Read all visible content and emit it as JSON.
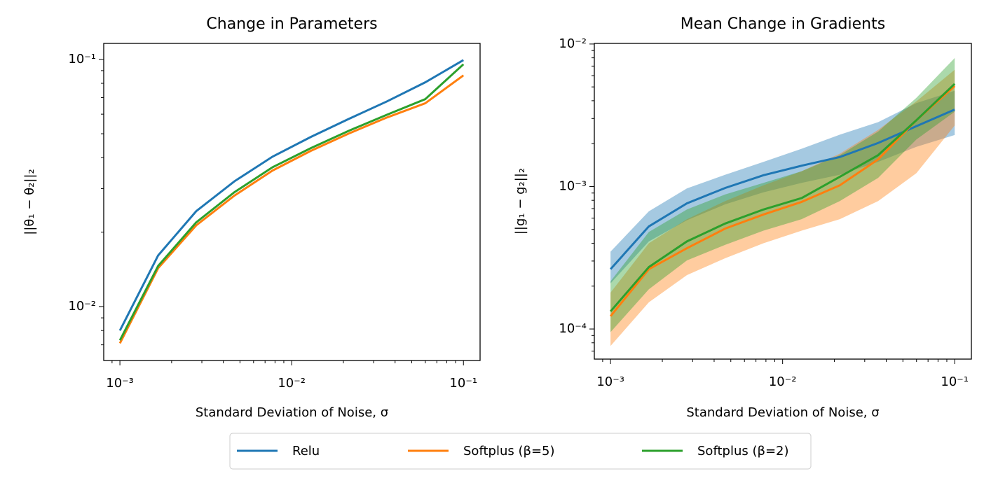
{
  "chart_data": [
    {
      "type": "line",
      "title": "Change in Parameters",
      "xlabel": "Standard Deviation of Noise, σ",
      "ylabel": "||θ₁ − θ₂||₂",
      "xscale": "log",
      "yscale": "log",
      "x": [
        0.001,
        0.00167,
        0.00278,
        0.00464,
        0.00774,
        0.0129,
        0.0215,
        0.0359,
        0.0599,
        0.1
      ],
      "xlim": [
        0.000805,
        0.125
      ],
      "ylim": [
        0.00605,
        0.116
      ],
      "xticks": [
        {
          "value": 0.001,
          "label": "10⁻³"
        },
        {
          "value": 0.01,
          "label": "10⁻²"
        },
        {
          "value": 0.1,
          "label": "10⁻¹"
        }
      ],
      "yticks": [
        {
          "value": 0.01,
          "label": "10⁻²"
        },
        {
          "value": 0.1,
          "label": "10⁻¹"
        }
      ],
      "series": [
        {
          "name": "Relu",
          "color": "#1f77b4",
          "values": [
            0.008,
            0.0161,
            0.0243,
            0.0321,
            0.0404,
            0.0485,
            0.0574,
            0.0676,
            0.0807,
            0.0993
          ]
        },
        {
          "name": "Softplus (β=5)",
          "color": "#ff7f0e",
          "values": [
            0.0071,
            0.0143,
            0.0213,
            0.0281,
            0.0355,
            0.0426,
            0.0501,
            0.0582,
            0.0664,
            0.0861
          ]
        },
        {
          "name": "Softplus (β=2)",
          "color": "#2ca02c",
          "values": [
            0.0073,
            0.0146,
            0.0219,
            0.029,
            0.0366,
            0.0437,
            0.0514,
            0.0597,
            0.069,
            0.0955
          ]
        }
      ]
    },
    {
      "type": "line",
      "title": "Mean Change in Gradients",
      "xlabel": "Standard Deviation of Noise, σ",
      "ylabel": "||g₁ − g₂||₂",
      "xscale": "log",
      "yscale": "log",
      "x": [
        0.001,
        0.00167,
        0.00278,
        0.00464,
        0.00774,
        0.0129,
        0.0215,
        0.0359,
        0.0599,
        0.1
      ],
      "xlim": [
        0.000805,
        0.125
      ],
      "ylim": [
        6.15e-05,
        0.0101
      ],
      "xticks": [
        {
          "value": 0.001,
          "label": "10⁻³"
        },
        {
          "value": 0.01,
          "label": "10⁻²"
        },
        {
          "value": 0.1,
          "label": "10⁻¹"
        }
      ],
      "yticks": [
        {
          "value": 0.0001,
          "label": "10⁻⁴"
        },
        {
          "value": 0.001,
          "label": "10⁻³"
        },
        {
          "value": 0.01,
          "label": "10⁻²"
        }
      ],
      "series": [
        {
          "name": "Relu",
          "color": "#1f77b4",
          "values": [
            0.000263,
            0.000525,
            0.000762,
            0.000977,
            0.0012,
            0.0014,
            0.00161,
            0.00202,
            0.00265,
            0.00347
          ],
          "upper": [
            0.000349,
            0.00067,
            0.00097,
            0.00121,
            0.00149,
            0.00184,
            0.00231,
            0.00283,
            0.00385,
            0.0047
          ],
          "lower": [
            0.000209,
            0.000412,
            0.00058,
            0.00075,
            0.00091,
            0.00106,
            0.00121,
            0.00149,
            0.0019,
            0.0023
          ]
        },
        {
          "name": "Softplus (β=5)",
          "color": "#ff7f0e",
          "values": [
            0.000123,
            0.000263,
            0.000369,
            0.000507,
            0.000636,
            0.00078,
            0.00102,
            0.00155,
            0.00292,
            0.00507
          ],
          "upper": [
            0.00018,
            0.0004,
            0.00059,
            0.00079,
            0.00102,
            0.00128,
            0.0017,
            0.0025,
            0.00396,
            0.0066
          ],
          "lower": [
            7.6e-05,
            0.000154,
            0.000239,
            0.000314,
            0.0004,
            0.00049,
            0.00059,
            0.00079,
            0.00124,
            0.00268
          ]
        },
        {
          "name": "Softplus (β=2)",
          "color": "#2ca02c",
          "values": [
            0.000133,
            0.000272,
            0.000412,
            0.00055,
            0.00069,
            0.00083,
            0.00117,
            0.00166,
            0.00292,
            0.00525
          ],
          "upper": [
            0.000216,
            0.00048,
            0.00069,
            0.00088,
            0.00106,
            0.00128,
            0.00166,
            0.00243,
            0.00419,
            0.00798
          ],
          "lower": [
            9.5e-05,
            0.00019,
            0.000303,
            0.00039,
            0.00049,
            0.00059,
            0.00079,
            0.00115,
            0.00214,
            0.00335
          ]
        }
      ]
    }
  ],
  "legend": "lower center"
}
